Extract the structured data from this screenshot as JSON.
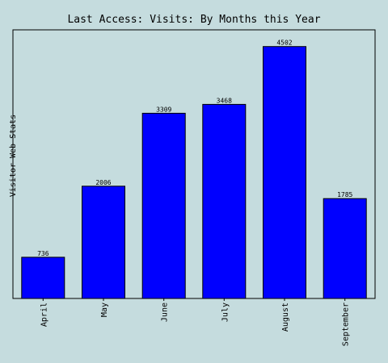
{
  "chart_data": {
    "type": "bar",
    "title": "Last Access: Visits: By Months this Year",
    "ylabel": "Visitor Web Stats",
    "xlabel": "",
    "categories": [
      "April",
      "May",
      "June",
      "July",
      "August",
      "September"
    ],
    "values": [
      736,
      2006,
      3309,
      3468,
      4502,
      1785
    ],
    "ylim": [
      0,
      4800
    ],
    "grid": false,
    "bar_color": "#0000ff",
    "background_color": "#c5dcde"
  }
}
